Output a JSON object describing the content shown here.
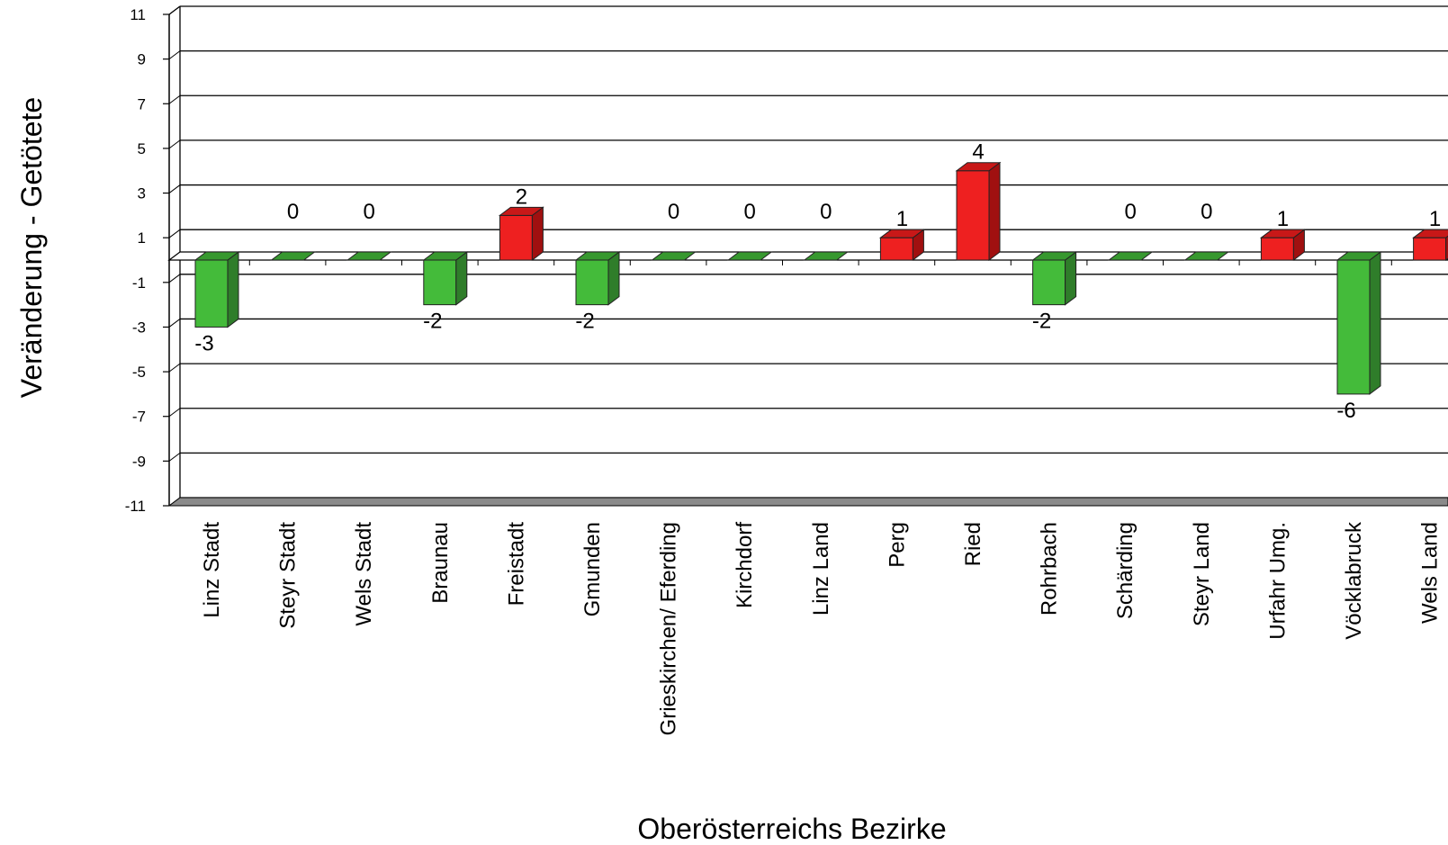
{
  "chart_data": {
    "type": "bar",
    "title": "",
    "xlabel": "Oberösterreichs Bezirke",
    "ylabel": "Veränderung - Getötete",
    "ylim": [
      -11,
      11
    ],
    "yticks": [
      11,
      9,
      7,
      5,
      3,
      1,
      -1,
      -3,
      -5,
      -7,
      -9,
      -11
    ],
    "grid": true,
    "legend": "none",
    "categories": [
      "Linz Stadt",
      "Steyr Stadt",
      "Wels Stadt",
      "Braunau",
      "Freistadt",
      "Gmunden",
      "Grieskirchen/ Eferding",
      "Kirchdorf",
      "Linz Land",
      "Perg",
      "Ried",
      "Rohrbach",
      "Schärding",
      "Steyr Land",
      "Urfahr Umg.",
      "Vöcklabruck",
      "Wels Land"
    ],
    "values": [
      -3,
      0,
      0,
      -2,
      2,
      -2,
      0,
      0,
      0,
      1,
      4,
      -2,
      0,
      0,
      1,
      -6,
      1
    ],
    "colors": {
      "positive": "#ee2020",
      "positive_side": "#a01010",
      "positive_top": "#c81818",
      "negative": "#44bb3a",
      "negative_side": "#2f7d2a",
      "negative_top": "#37982f"
    }
  }
}
